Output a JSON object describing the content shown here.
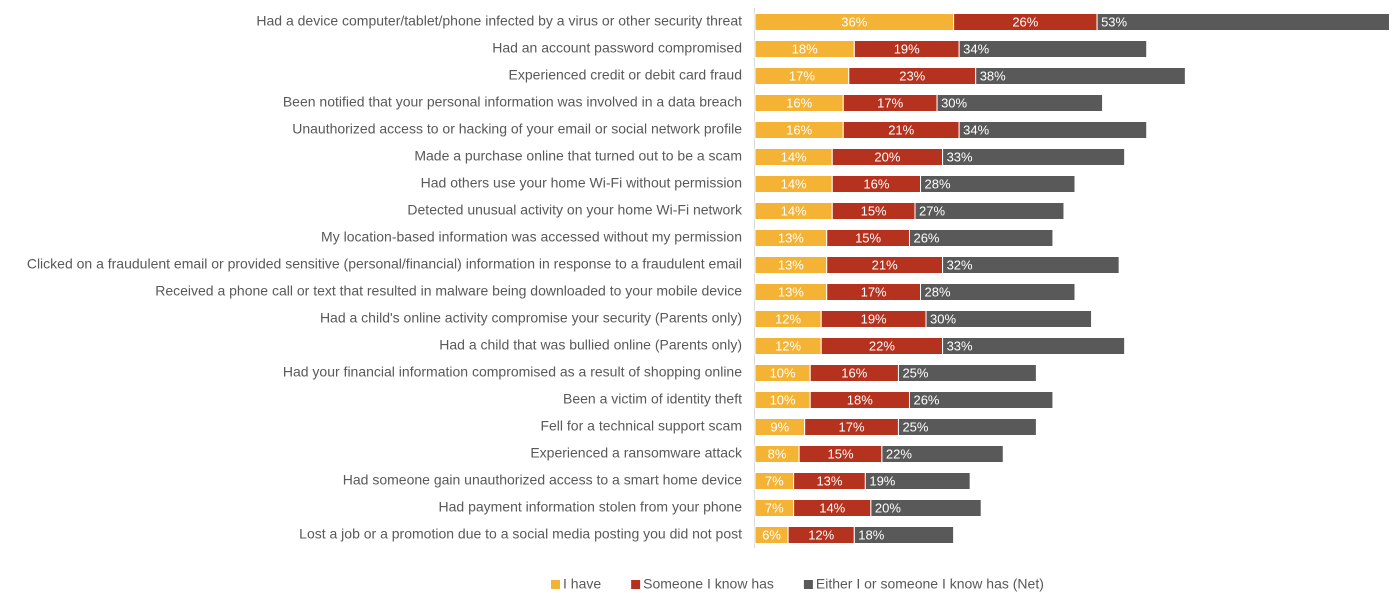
{
  "chart_data": {
    "type": "stacked-barh",
    "categories": [
      "Had a device computer/tablet/phone infected by a virus or other security threat",
      "Had an account password compromised",
      "Experienced credit or debit card fraud",
      "Been notified that your personal information was involved in a data breach",
      "Unauthorized access to or hacking of your email or social network profile",
      "Made a purchase online that turned out to be a scam",
      "Had others use your home Wi-Fi without permission",
      "Detected unusual activity on your home Wi-Fi network",
      "My location-based information was accessed without my permission",
      "Clicked on a fraudulent email or provided sensitive (personal/financial) information in response to a fraudulent email",
      "Received a phone call or text that resulted in malware being downloaded to your mobile device",
      "Had a child's online activity compromise your security (Parents only)",
      "Had a child that was bullied online (Parents only)",
      "Had your financial information compromised as a result of shopping online",
      "Been a victim of identity theft",
      "Fell for a technical support scam",
      "Experienced a ransomware attack",
      "Had someone gain unauthorized access to a smart home device",
      "Had payment information stolen from your phone",
      "Lost a job or a promotion due to a social media posting you did not post"
    ],
    "series": [
      {
        "name": "I have",
        "color": "#f5b335",
        "values": [
          36,
          18,
          17,
          16,
          16,
          14,
          14,
          14,
          13,
          13,
          13,
          12,
          12,
          10,
          10,
          9,
          8,
          7,
          7,
          6
        ],
        "value_labels": [
          "36%",
          "18%",
          "17%",
          "16%",
          "16%",
          "14%",
          "14%",
          "14%",
          "13%",
          "13%",
          "13%",
          "12%",
          "12%",
          "10%",
          "10%",
          "9%",
          "8%",
          "7%",
          "7%",
          "6%"
        ]
      },
      {
        "name": "Someone I know has",
        "color": "#b5321e",
        "values": [
          26,
          19,
          23,
          17,
          21,
          20,
          16,
          15,
          15,
          21,
          17,
          19,
          22,
          16,
          18,
          17,
          15,
          13,
          14,
          12
        ],
        "value_labels": [
          "26%",
          "19%",
          "23%",
          "17%",
          "21%",
          "20%",
          "16%",
          "15%",
          "15%",
          "21%",
          "17%",
          "19%",
          "22%",
          "16%",
          "18%",
          "17%",
          "15%",
          "13%",
          "14%",
          "12%"
        ]
      },
      {
        "name": "Either I or someone I know has (Net)",
        "color": "#595959",
        "values": [
          53,
          34,
          38,
          30,
          34,
          33,
          28,
          27,
          26,
          32,
          28,
          30,
          33,
          25,
          26,
          25,
          22,
          19,
          20,
          18
        ],
        "value_labels": [
          "53%",
          "34%",
          "38%",
          "30%",
          "34%",
          "33%",
          "28%",
          "27%",
          "26%",
          "32%",
          "28%",
          "30%",
          "33%",
          "25%",
          "26%",
          "25%",
          "22%",
          "19%",
          "20%",
          "18%"
        ]
      }
    ],
    "xlim": [
      0,
      116
    ]
  }
}
